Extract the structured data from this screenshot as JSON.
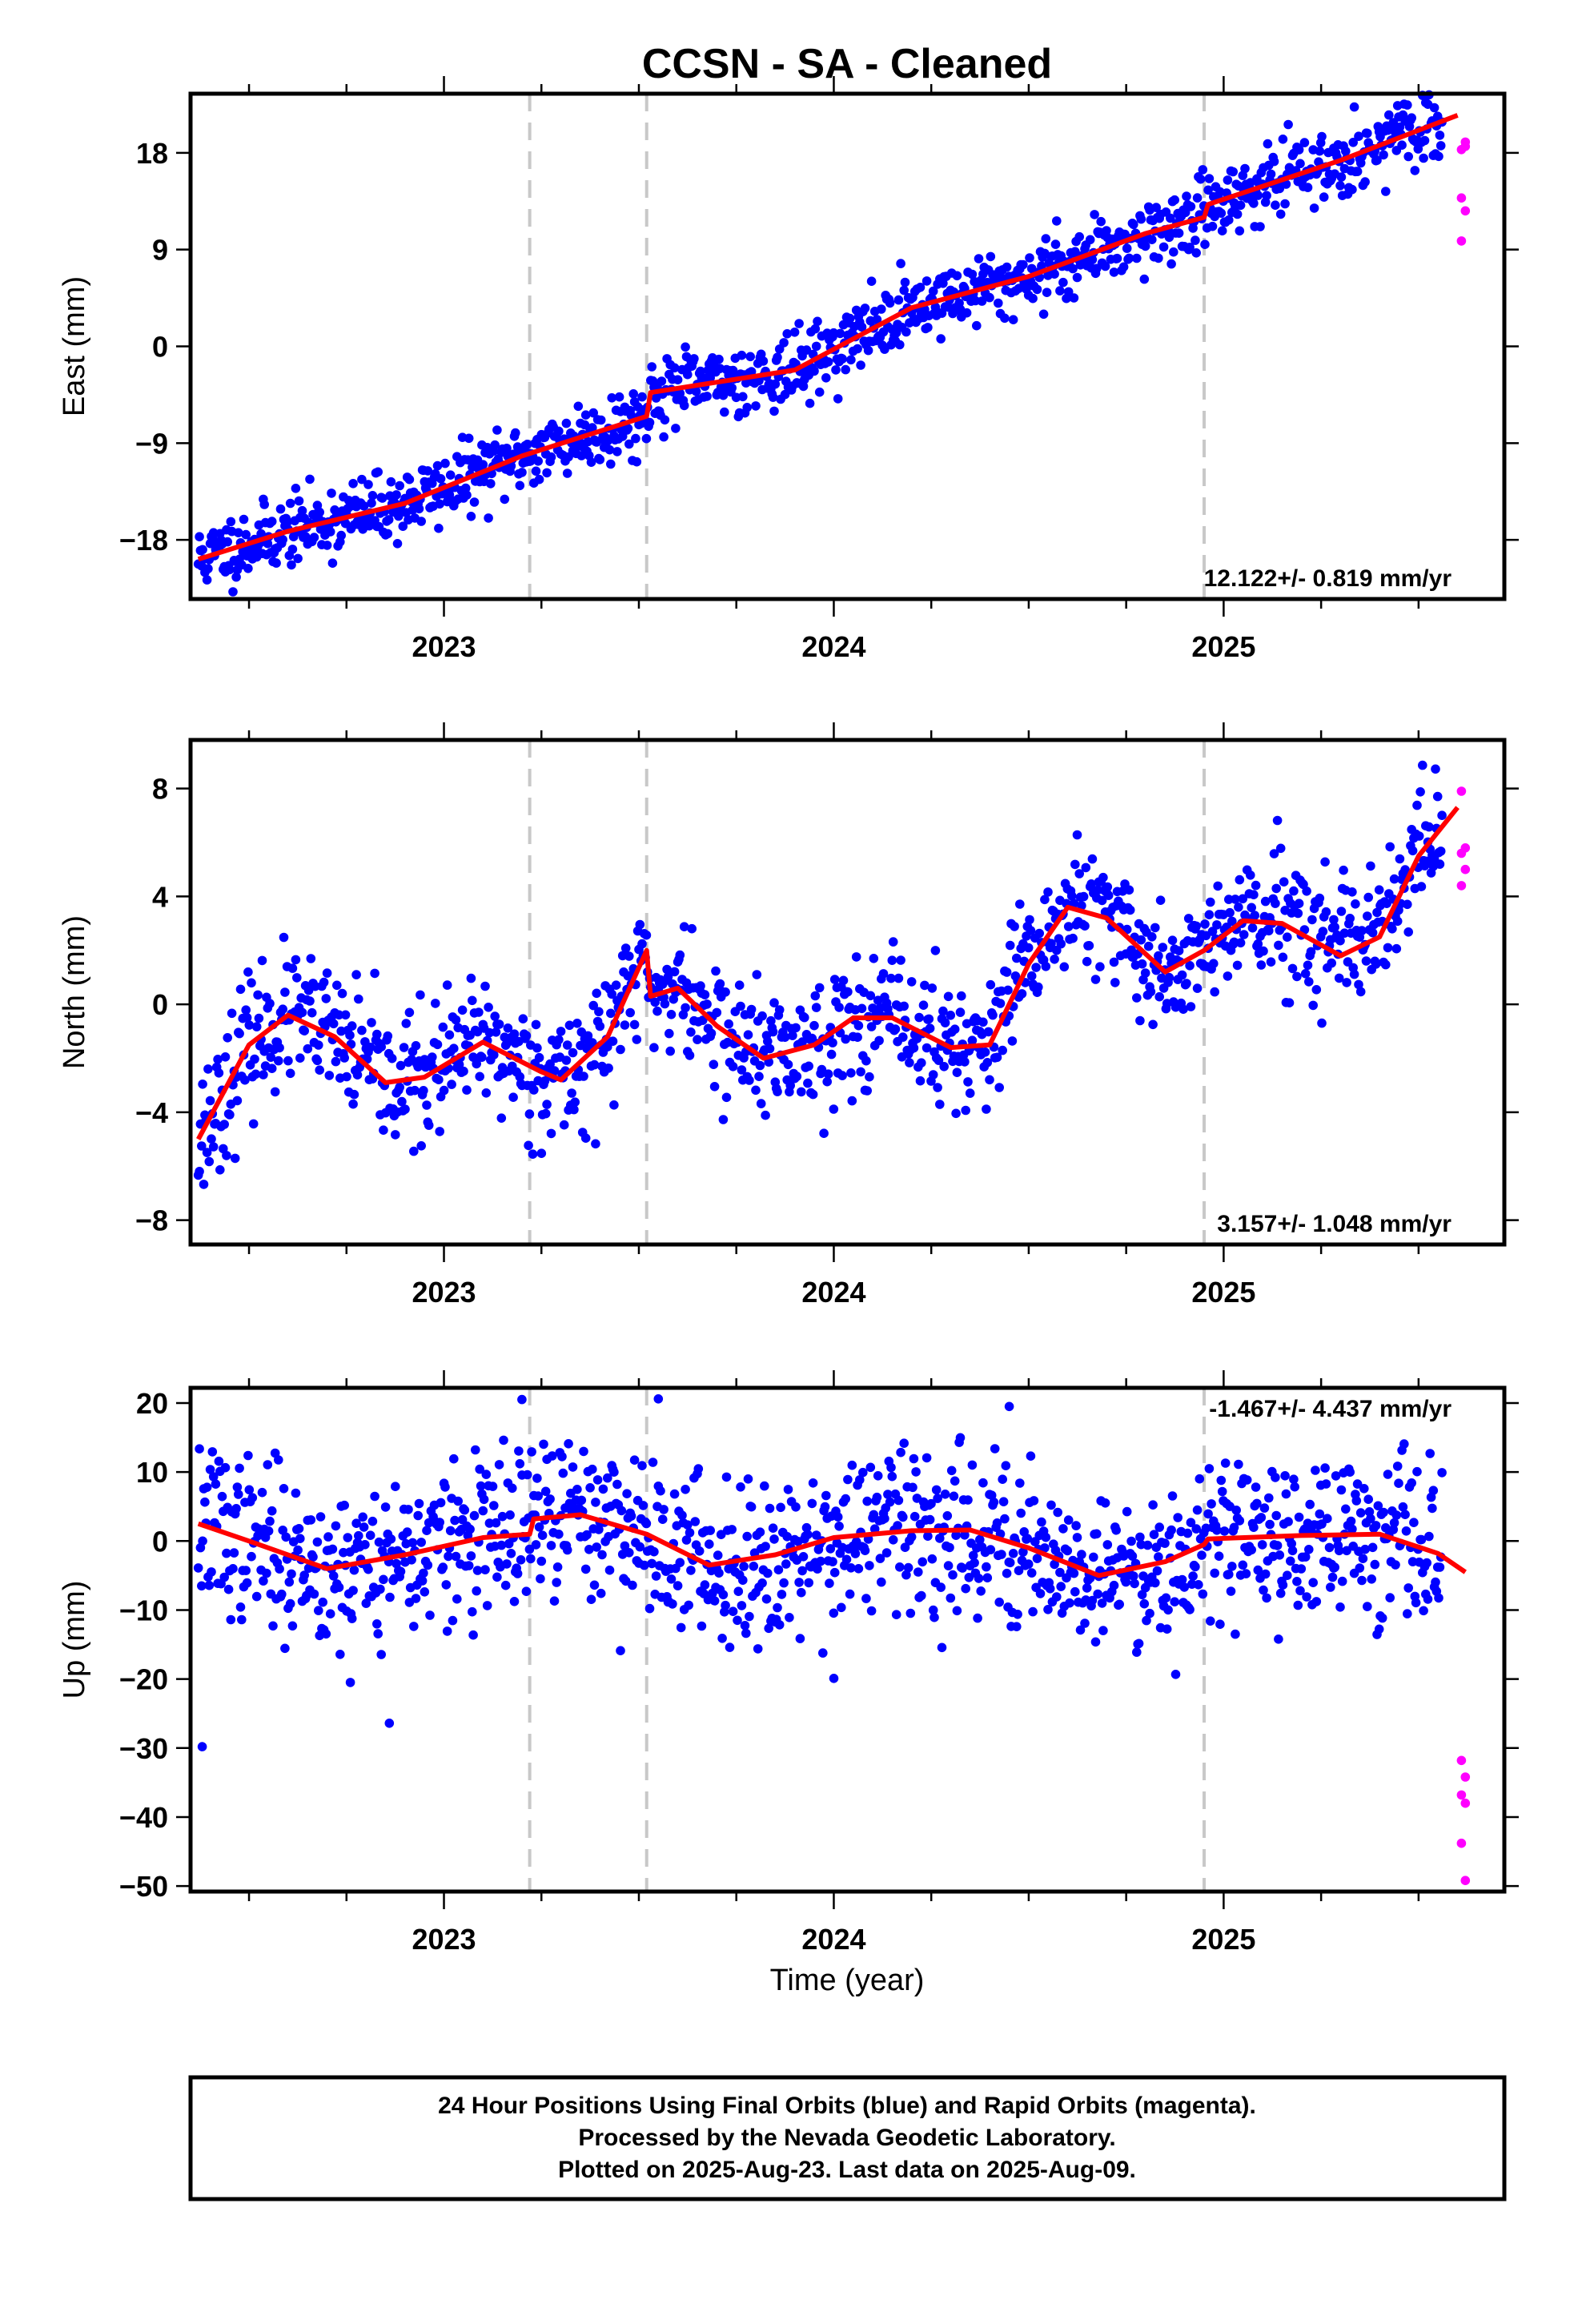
{
  "chart_data": [
    {
      "type": "scatter",
      "title": "CCSN  - SA - Cleaned",
      "ylabel": "East (mm)",
      "xlabel": "",
      "xlim": [
        2022.35,
        2025.72
      ],
      "ylim": [
        -23.5,
        23.5
      ],
      "yticks": [
        -18,
        -9,
        0,
        9,
        18
      ],
      "xticks": [
        2023,
        2024,
        2025
      ],
      "grid": false,
      "vlines": [
        2023.22,
        2023.52,
        2024.95
      ],
      "rate_label": "12.122+/- 0.819 mm/yr",
      "rate_position": "bottom-right",
      "series": [
        {
          "name": "Final Orbits",
          "color": "#0000ff",
          "style": "points",
          "x_range": [
            2022.37,
            2025.56
          ],
          "trend": "linear",
          "slope": 12.1,
          "noise": 1.6,
          "seed": 11
        },
        {
          "name": "Rapid Orbits",
          "color": "#ff00ff",
          "style": "points",
          "points": [
            [
              2025.61,
              18.3
            ],
            [
              2025.62,
              19.0
            ],
            [
              2025.61,
              13.8
            ],
            [
              2025.62,
              12.6
            ],
            [
              2025.61,
              9.8
            ],
            [
              2025.62,
              18.6
            ]
          ]
        },
        {
          "name": "Model",
          "color": "#ff0000",
          "style": "line",
          "points": [
            [
              2022.37,
              -19.8
            ],
            [
              2022.6,
              -17.2
            ],
            [
              2022.9,
              -14.6
            ],
            [
              2023.2,
              -10.2
            ],
            [
              2023.52,
              -6.5
            ],
            [
              2023.53,
              -4.3
            ],
            [
              2023.9,
              -2.2
            ],
            [
              2024.2,
              3.6
            ],
            [
              2024.5,
              6.5
            ],
            [
              2024.8,
              10.5
            ],
            [
              2024.95,
              12.0
            ],
            [
              2024.96,
              13.2
            ],
            [
              2025.3,
              17.3
            ],
            [
              2025.6,
              21.5
            ]
          ]
        }
      ]
    },
    {
      "type": "scatter",
      "title": "",
      "ylabel": "North (mm)",
      "xlabel": "",
      "xlim": [
        2022.35,
        2025.72
      ],
      "ylim": [
        -8.9,
        9.8
      ],
      "yticks": [
        -8,
        -4,
        0,
        4,
        8
      ],
      "xticks": [
        2023,
        2024,
        2025
      ],
      "grid": false,
      "vlines": [
        2023.22,
        2023.52,
        2024.95
      ],
      "rate_label": "3.157+/- 1.048 mm/yr",
      "rate_position": "bottom-right",
      "series": [
        {
          "name": "Final Orbits",
          "color": "#0000ff",
          "style": "points",
          "x_range": [
            2022.37,
            2025.56
          ],
          "trend": "model",
          "noise": 1.2,
          "seed": 23
        },
        {
          "name": "Rapid Orbits",
          "color": "#ff00ff",
          "style": "points",
          "points": [
            [
              2025.61,
              7.9
            ],
            [
              2025.62,
              5.8
            ],
            [
              2025.61,
              5.6
            ],
            [
              2025.62,
              5.0
            ],
            [
              2025.61,
              4.4
            ]
          ]
        },
        {
          "name": "Model",
          "color": "#ff0000",
          "style": "line",
          "points": [
            [
              2022.37,
              -5.0
            ],
            [
              2022.5,
              -1.5
            ],
            [
              2022.6,
              -0.4
            ],
            [
              2022.72,
              -1.2
            ],
            [
              2022.85,
              -2.9
            ],
            [
              2022.95,
              -2.7
            ],
            [
              2023.1,
              -1.4
            ],
            [
              2023.25,
              -2.5
            ],
            [
              2023.3,
              -2.8
            ],
            [
              2023.42,
              -1.2
            ],
            [
              2023.52,
              2.0
            ],
            [
              2023.53,
              0.3
            ],
            [
              2023.6,
              0.6
            ],
            [
              2023.7,
              -0.8
            ],
            [
              2023.82,
              -2.0
            ],
            [
              2023.95,
              -1.5
            ],
            [
              2024.05,
              -0.5
            ],
            [
              2024.15,
              -0.5
            ],
            [
              2024.3,
              -1.6
            ],
            [
              2024.4,
              -1.5
            ],
            [
              2024.5,
              1.5
            ],
            [
              2024.6,
              3.6
            ],
            [
              2024.7,
              3.2
            ],
            [
              2024.85,
              1.2
            ],
            [
              2024.95,
              2.0
            ],
            [
              2025.05,
              3.1
            ],
            [
              2025.15,
              3.0
            ],
            [
              2025.25,
              2.2
            ],
            [
              2025.3,
              1.8
            ],
            [
              2025.4,
              2.5
            ],
            [
              2025.5,
              5.5
            ],
            [
              2025.6,
              7.3
            ]
          ]
        }
      ]
    },
    {
      "type": "scatter",
      "title": "",
      "ylabel": "Up (mm)",
      "xlabel": "Time (year)",
      "xlim": [
        2022.35,
        2025.72
      ],
      "ylim": [
        -50.8,
        22.2
      ],
      "yticks": [
        -50,
        -40,
        -30,
        -20,
        -10,
        0,
        10,
        20
      ],
      "xticks": [
        2023,
        2024,
        2025
      ],
      "grid": false,
      "vlines": [
        2023.22,
        2023.52,
        2024.95
      ],
      "rate_label": "-1.467+/- 4.437 mm/yr",
      "rate_position": "top-right",
      "series": [
        {
          "name": "Final Orbits",
          "color": "#0000ff",
          "style": "points",
          "x_range": [
            2022.37,
            2025.56
          ],
          "trend": "model",
          "noise": 5.8,
          "seed": 37,
          "outliers": [
            [
              2022.38,
              -29.8
            ],
            [
              2022.86,
              -26.4
            ],
            [
              2022.76,
              -20.5
            ],
            [
              2024.0,
              -19.9
            ],
            [
              2023.55,
              20.6
            ],
            [
              2023.2,
              20.5
            ],
            [
              2024.45,
              19.5
            ]
          ]
        },
        {
          "name": "Rapid Orbits",
          "color": "#ff00ff",
          "style": "points",
          "points": [
            [
              2025.61,
              -31.8
            ],
            [
              2025.62,
              -34.2
            ],
            [
              2025.61,
              -36.8
            ],
            [
              2025.62,
              -38.0
            ],
            [
              2025.61,
              -43.8
            ],
            [
              2025.62,
              -49.2
            ]
          ]
        },
        {
          "name": "Model",
          "color": "#ff0000",
          "style": "line",
          "points": [
            [
              2022.37,
              2.5
            ],
            [
              2022.5,
              0.0
            ],
            [
              2022.7,
              -4.0
            ],
            [
              2022.9,
              -2.0
            ],
            [
              2023.1,
              0.5
            ],
            [
              2023.22,
              1.0
            ],
            [
              2023.23,
              3.2
            ],
            [
              2023.35,
              3.8
            ],
            [
              2023.52,
              1.0
            ],
            [
              2023.68,
              -3.5
            ],
            [
              2023.85,
              -2.0
            ],
            [
              2024.0,
              0.5
            ],
            [
              2024.2,
              1.5
            ],
            [
              2024.35,
              1.6
            ],
            [
              2024.5,
              -1.0
            ],
            [
              2024.68,
              -5.0
            ],
            [
              2024.85,
              -3.0
            ],
            [
              2024.95,
              -0.5
            ],
            [
              2024.96,
              0.3
            ],
            [
              2025.2,
              0.8
            ],
            [
              2025.4,
              1.0
            ],
            [
              2025.55,
              -1.8
            ],
            [
              2025.62,
              -4.5
            ]
          ]
        }
      ]
    }
  ],
  "footer": {
    "line1": "24 Hour Positions Using Final Orbits (blue) and Rapid Orbits (magenta).",
    "line2": "Processed by the Nevada Geodetic Laboratory.",
    "line3": "Plotted on 2025-Aug-23. Last data on 2025-Aug-09."
  }
}
